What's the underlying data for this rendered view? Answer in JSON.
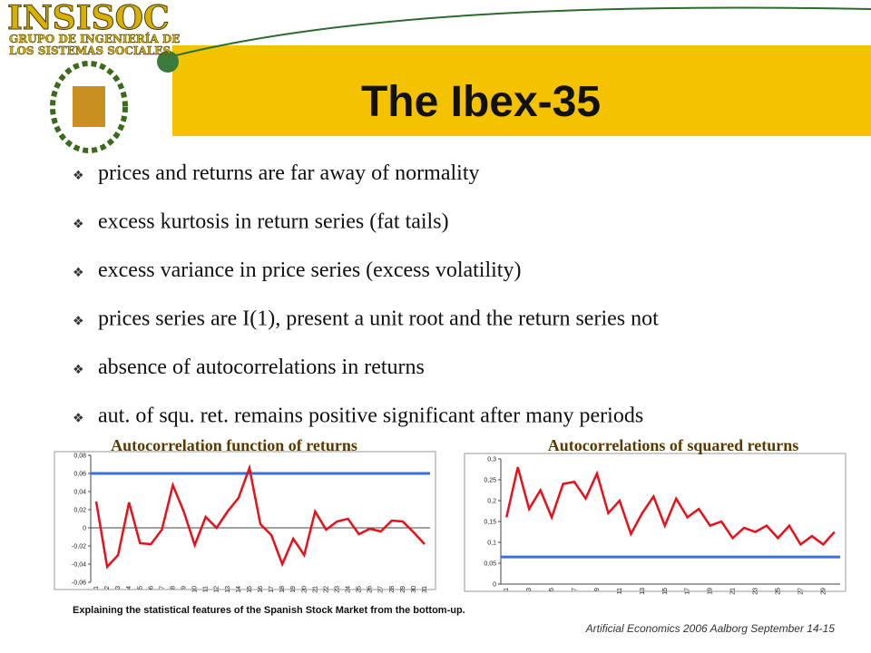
{
  "header": {
    "logo": "INSISOC",
    "logo_sub": [
      "GRUPO DE INGENIERÍA DE",
      "LOS SISTEMAS SOCIALES"
    ],
    "title": "The Ibex-35"
  },
  "bullets": [
    "prices and returns are far away of normality",
    "excess kurtosis in return series (fat tails)",
    "excess variance in price series (excess volatility)",
    "prices series are I(1), present a unit root and the return series not",
    "absence of autocorrelations in returns",
    "aut. of squ. ret. remains positive significant after many periods"
  ],
  "chart_data": [
    {
      "type": "line",
      "title": "Autocorrelation function of returns",
      "categories": [
        "1",
        "2",
        "3",
        "4",
        "5",
        "6",
        "7",
        "8",
        "9",
        "10",
        "11",
        "12",
        "13",
        "14",
        "15",
        "16",
        "17",
        "18",
        "19",
        "20",
        "21",
        "22",
        "23",
        "24",
        "25",
        "26",
        "27",
        "28",
        "29",
        "30",
        "31"
      ],
      "values": [
        0.029,
        -0.043,
        -0.03,
        0.028,
        -0.017,
        -0.018,
        -0.002,
        0.047,
        0.018,
        -0.019,
        0.012,
        0.0,
        0.018,
        0.033,
        0.066,
        0.004,
        -0.008,
        -0.04,
        -0.012,
        -0.03,
        0.018,
        -0.002,
        0.007,
        0.01,
        -0.007,
        -0.001,
        -0.004,
        0.008,
        0.007,
        -0.005,
        -0.018
      ],
      "color": "#e8101a",
      "threshold": 0.06,
      "threshold_color": "#3a6fd8",
      "ylim": [
        -0.06,
        0.08
      ],
      "yticks": [
        {
          "value": -0.06,
          "label": "-0,06"
        },
        {
          "value": -0.04,
          "label": "-0,04"
        },
        {
          "value": -0.02,
          "label": "-0,02"
        },
        0,
        {
          "value": 0.02,
          "label": "0,02"
        },
        {
          "value": 0.04,
          "label": "0,04"
        },
        {
          "value": 0.06,
          "label": "0,06"
        },
        {
          "value": 0.08,
          "label": "0,08"
        }
      ]
    },
    {
      "type": "line",
      "title": "Autocorrelations of squared returns",
      "categories": [
        "1",
        null,
        "3",
        null,
        "5",
        null,
        "7",
        null,
        "9",
        null,
        "11",
        null,
        "13",
        null,
        "15",
        null,
        "17",
        null,
        "19",
        null,
        "21",
        null,
        "23",
        null,
        "25",
        null,
        "27",
        null,
        "29",
        null
      ],
      "values": [
        0.16,
        0.28,
        0.18,
        0.225,
        0.16,
        0.24,
        0.245,
        0.205,
        0.265,
        0.17,
        0.2,
        0.12,
        0.17,
        0.21,
        0.14,
        0.205,
        0.16,
        0.18,
        0.14,
        0.15,
        0.11,
        0.135,
        0.125,
        0.14,
        0.11,
        0.14,
        0.095,
        0.115,
        0.095,
        0.125
      ],
      "color": "#e8101a",
      "threshold": 0.065,
      "threshold_color": "#3a6fd8",
      "ylim": [
        0,
        0.3
      ],
      "yticks": [
        0,
        {
          "value": 0.05,
          "label": "0,05"
        },
        {
          "value": 0.1,
          "label": "0,1"
        },
        {
          "value": 0.15,
          "label": "0,15"
        },
        {
          "value": 0.2,
          "label": "0,2"
        },
        {
          "value": 0.25,
          "label": "0,25"
        },
        {
          "value": 0.3,
          "label": "0,3"
        }
      ]
    }
  ],
  "footer": {
    "caption": "Explaining the statistical features of the Spanish Stock Market from the bottom-up.",
    "credit": "Artificial Economics 2006 Aalborg September 14-15"
  }
}
